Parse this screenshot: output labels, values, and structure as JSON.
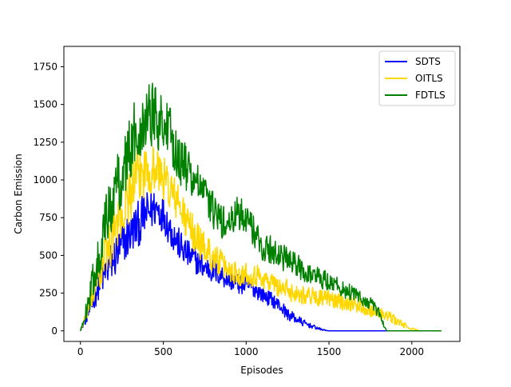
{
  "chart_data": {
    "type": "line",
    "title": "",
    "xlabel": "Episodes",
    "ylabel": "Carbon Emission",
    "xlim": [
      -100,
      2290
    ],
    "ylim": [
      -70,
      1885
    ],
    "x_ticks": [
      0,
      500,
      1000,
      1500,
      2000
    ],
    "y_ticks": [
      0,
      250,
      500,
      750,
      1000,
      1250,
      1500,
      1750
    ],
    "grid": false,
    "legend_position": "top-right",
    "series": [
      {
        "name": "SDTS",
        "color": "#0000ff",
        "x": [
          0,
          50,
          100,
          150,
          200,
          250,
          300,
          350,
          400,
          450,
          500,
          550,
          600,
          650,
          700,
          750,
          800,
          850,
          900,
          950,
          1000,
          1050,
          1100,
          1150,
          1200,
          1250,
          1300,
          1350,
          1400,
          1450,
          1500,
          1550,
          1600,
          1650,
          1700,
          1750,
          1800,
          1850,
          1900,
          1950,
          2000,
          2050,
          2100,
          2150,
          2180
        ],
        "values": [
          0,
          120,
          280,
          390,
          480,
          560,
          650,
          700,
          780,
          820,
          780,
          660,
          560,
          500,
          460,
          420,
          400,
          370,
          340,
          310,
          300,
          280,
          240,
          210,
          170,
          110,
          80,
          50,
          30,
          10,
          0,
          0,
          0,
          0,
          0,
          0,
          0,
          0,
          0,
          0,
          0,
          0,
          0,
          0,
          0
        ],
        "noise": [
          0,
          60,
          110,
          140,
          160,
          170,
          170,
          170,
          160,
          150,
          140,
          130,
          120,
          110,
          100,
          95,
          90,
          85,
          80,
          75,
          70,
          65,
          60,
          55,
          50,
          45,
          35,
          25,
          15,
          8,
          0,
          0,
          0,
          0,
          0,
          0,
          0,
          0,
          0,
          0,
          0,
          0,
          0,
          0,
          0
        ]
      },
      {
        "name": "OITLS",
        "color": "#ffd700",
        "x": [
          0,
          50,
          100,
          150,
          200,
          250,
          300,
          350,
          400,
          450,
          500,
          550,
          600,
          650,
          700,
          750,
          800,
          850,
          900,
          950,
          1000,
          1050,
          1100,
          1150,
          1200,
          1250,
          1300,
          1350,
          1400,
          1450,
          1500,
          1550,
          1600,
          1650,
          1700,
          1750,
          1800,
          1850,
          1900,
          1950,
          1980,
          2050,
          2100,
          2150,
          2180
        ],
        "values": [
          0,
          150,
          330,
          500,
          650,
          780,
          920,
          1020,
          1080,
          1080,
          1020,
          920,
          820,
          700,
          620,
          550,
          490,
          440,
          400,
          380,
          380,
          370,
          350,
          320,
          290,
          270,
          250,
          240,
          230,
          220,
          210,
          200,
          190,
          180,
          160,
          140,
          120,
          100,
          70,
          40,
          20,
          0,
          0,
          0,
          0
        ],
        "noise": [
          0,
          70,
          130,
          170,
          200,
          210,
          210,
          200,
          190,
          180,
          170,
          160,
          150,
          140,
          130,
          120,
          110,
          100,
          95,
          90,
          85,
          85,
          80,
          80,
          75,
          75,
          70,
          70,
          65,
          65,
          60,
          60,
          60,
          55,
          55,
          50,
          45,
          40,
          35,
          25,
          10,
          0,
          0,
          0,
          0
        ]
      },
      {
        "name": "FDTLS",
        "color": "#008000",
        "x": [
          0,
          50,
          100,
          150,
          200,
          250,
          300,
          350,
          400,
          450,
          500,
          550,
          600,
          650,
          700,
          750,
          800,
          850,
          900,
          950,
          1000,
          1050,
          1100,
          1150,
          1200,
          1250,
          1300,
          1350,
          1400,
          1450,
          1500,
          1550,
          1600,
          1650,
          1700,
          1750,
          1800,
          1830,
          1850,
          1900,
          1950,
          2000,
          2050,
          2100,
          2180
        ],
        "values": [
          0,
          200,
          450,
          700,
          900,
          1050,
          1200,
          1350,
          1450,
          1450,
          1380,
          1260,
          1150,
          1050,
          980,
          900,
          800,
          720,
          700,
          780,
          780,
          640,
          560,
          530,
          500,
          470,
          430,
          400,
          370,
          350,
          330,
          300,
          270,
          240,
          210,
          180,
          120,
          40,
          0,
          0,
          0,
          0,
          0,
          0,
          0
        ],
        "noise": [
          0,
          90,
          160,
          200,
          230,
          250,
          260,
          260,
          250,
          240,
          230,
          210,
          190,
          170,
          150,
          140,
          130,
          120,
          120,
          130,
          140,
          120,
          110,
          105,
          100,
          95,
          90,
          85,
          80,
          80,
          75,
          70,
          65,
          60,
          55,
          50,
          40,
          20,
          0,
          0,
          0,
          0,
          0,
          0,
          0
        ]
      }
    ]
  }
}
